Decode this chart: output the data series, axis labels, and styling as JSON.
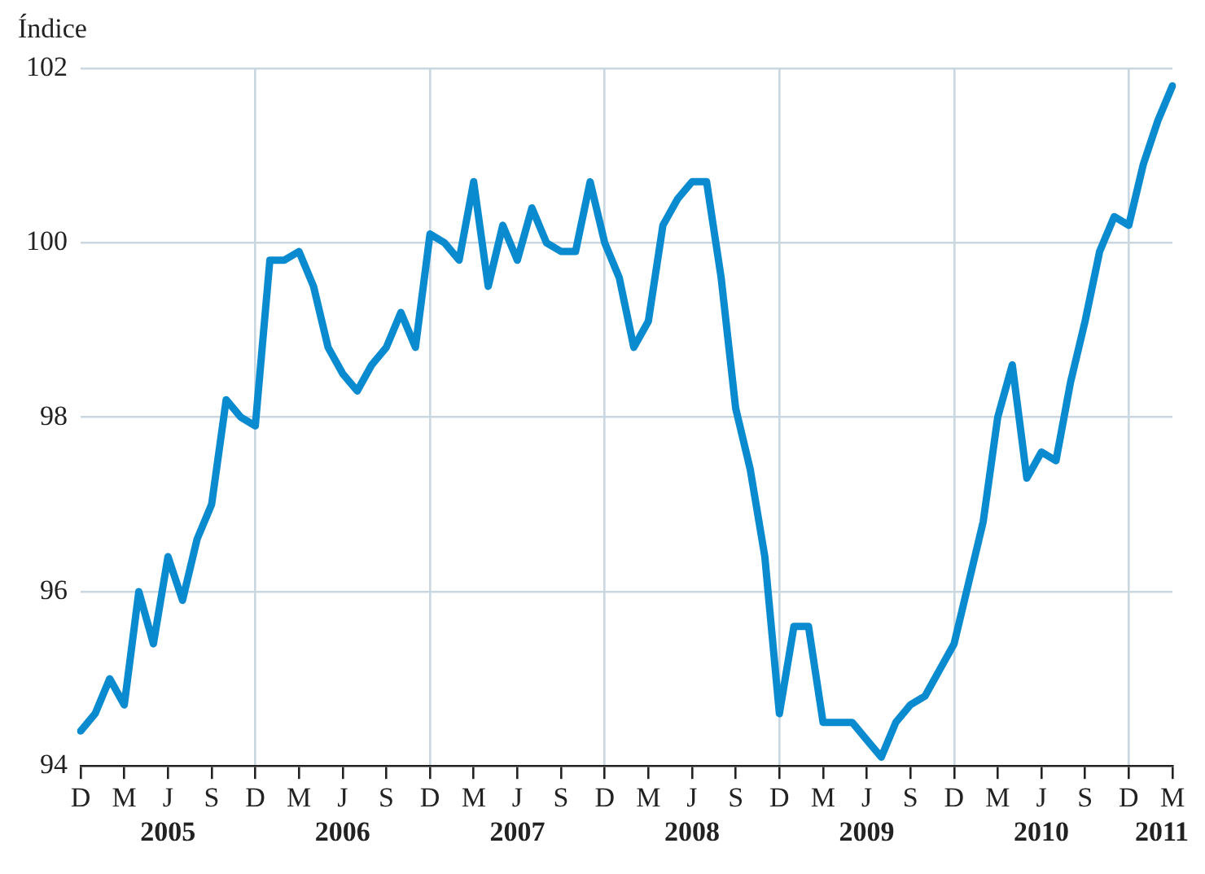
{
  "chart_data": {
    "type": "line",
    "ylabel": "Índice",
    "categories": [
      "D",
      null,
      null,
      "M",
      null,
      null,
      "J",
      null,
      null,
      "S",
      null,
      null,
      "D",
      null,
      null,
      "M",
      null,
      null,
      "J",
      null,
      null,
      "S",
      null,
      null,
      "D",
      null,
      null,
      "M",
      null,
      null,
      "J",
      null,
      null,
      "S",
      null,
      null,
      "D",
      null,
      null,
      "M",
      null,
      null,
      "J",
      null,
      null,
      "S",
      null,
      null,
      "D",
      null,
      null,
      "M",
      null,
      null,
      "J",
      null,
      null,
      "S",
      null,
      null,
      "D",
      null,
      null,
      "M",
      null,
      null,
      "J",
      null,
      null,
      "S",
      null,
      null,
      "D",
      null,
      null,
      "M"
    ],
    "series": [
      {
        "color": "#0a8bd0",
        "values": [
          94.4,
          94.6,
          95.0,
          94.7,
          96.0,
          95.4,
          96.4,
          95.9,
          96.6,
          97.0,
          98.2,
          98.0,
          97.9,
          99.8,
          99.8,
          99.9,
          99.5,
          98.8,
          98.5,
          98.3,
          98.6,
          98.8,
          99.2,
          98.8,
          100.1,
          100.0,
          99.8,
          100.7,
          99.5,
          100.2,
          99.8,
          100.4,
          100.0,
          99.9,
          99.9,
          100.7,
          100.0,
          99.6,
          98.8,
          99.1,
          100.2,
          100.5,
          100.7,
          100.7,
          99.6,
          98.1,
          97.4,
          96.4,
          94.6,
          95.6,
          95.6,
          94.5,
          94.5,
          94.5,
          94.3,
          94.1,
          94.5,
          94.7,
          94.8,
          95.1,
          95.4,
          96.1,
          96.8,
          98.0,
          98.6,
          97.3,
          97.6,
          97.5,
          98.4,
          99.1,
          99.9,
          100.3,
          100.2,
          100.9,
          101.4,
          101.8
        ]
      }
    ],
    "ylim": [
      94,
      102
    ],
    "yticks": [
      94,
      96,
      98,
      100,
      102
    ],
    "grid": true,
    "legend": false,
    "marker": "none",
    "line_style": "solid",
    "annotations": [
      "2005",
      "2006",
      "2007",
      "2008",
      "2009",
      "2010",
      "2011"
    ]
  }
}
